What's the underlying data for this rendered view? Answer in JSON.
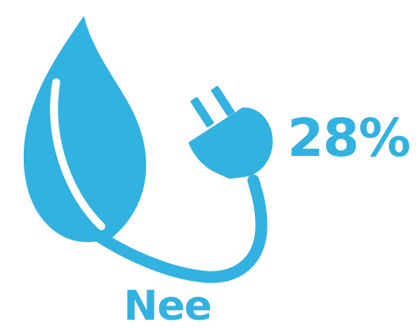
{
  "infographic": {
    "percentage": "28%",
    "answer_label": "Nee",
    "accent_color": "#31b2e0",
    "icon": "leaf-with-power-plug-icon"
  }
}
